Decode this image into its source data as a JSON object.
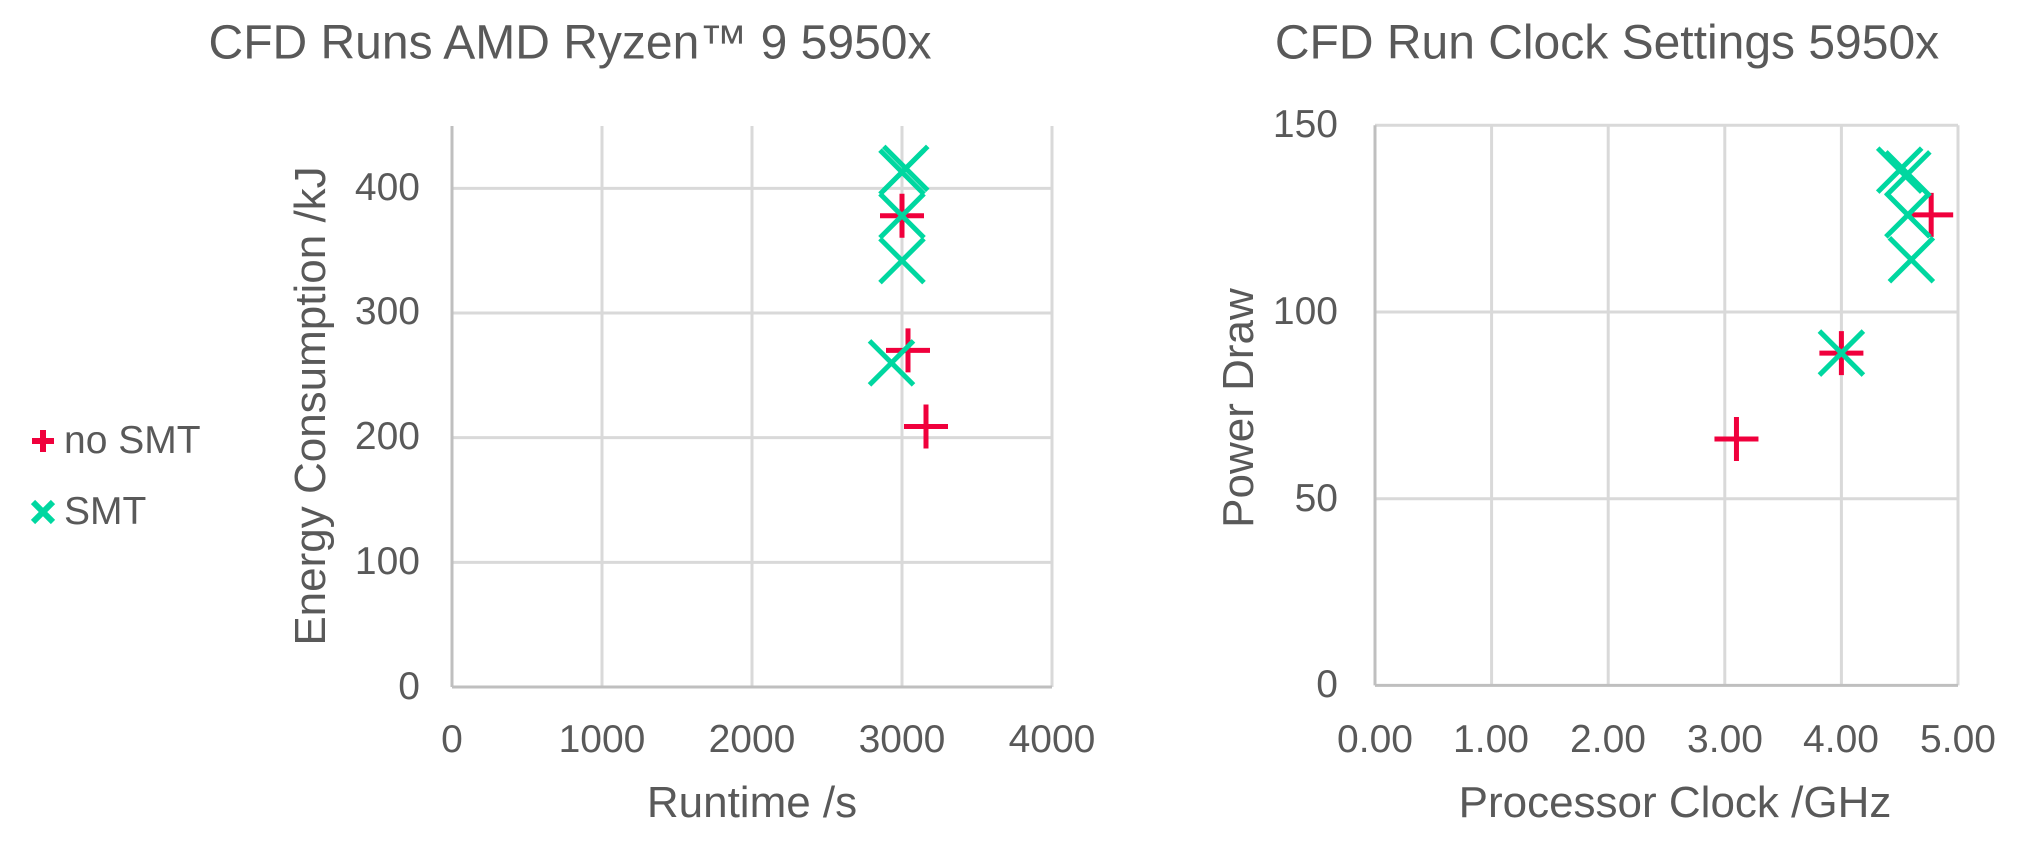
{
  "legend": {
    "items": [
      {
        "label": "no SMT",
        "marker": "plus",
        "color": "#F0003C"
      },
      {
        "label": "SMT",
        "marker": "cross",
        "color": "#00D7A0"
      }
    ]
  },
  "charts": [
    {
      "title": "CFD Runs AMD Ryzen™ 9 5950x",
      "xlabel": "Runtime /s",
      "ylabel": "Energy Consumption /kJ",
      "x_ticks": [
        "0",
        "1000",
        "2000",
        "3000",
        "4000"
      ],
      "y_ticks": [
        "0",
        "100",
        "200",
        "300",
        "400"
      ]
    },
    {
      "title": "CFD Run Clock Settings 5950x",
      "xlabel": "Processor Clock /GHz",
      "ylabel": "Power Draw",
      "x_ticks": [
        "0.00",
        "1.00",
        "2.00",
        "3.00",
        "4.00",
        "5.00"
      ],
      "y_ticks": [
        "0",
        "50",
        "100",
        "150"
      ]
    }
  ],
  "colors": {
    "no_smt": "#F0003C",
    "smt": "#00D7A0",
    "grid": "#D9D9D9",
    "axis": "#BFBFBF",
    "text": "#595959"
  },
  "chart_data": [
    {
      "type": "scatter",
      "title": "CFD Runs AMD Ryzen™ 9 5950x",
      "xlabel": "Runtime /s",
      "ylabel": "Energy Consumption /kJ",
      "xlim": [
        0,
        4000
      ],
      "ylim": [
        0,
        450
      ],
      "x_ticks": [
        0,
        1000,
        2000,
        3000,
        4000
      ],
      "y_ticks": [
        0,
        100,
        200,
        300,
        400
      ],
      "grid": true,
      "legend_position": "left",
      "series": [
        {
          "name": "no SMT",
          "marker": "plus",
          "color": "#F0003C",
          "points": [
            [
              3000,
              378
            ],
            [
              3040,
              270
            ],
            [
              3160,
              209
            ]
          ]
        },
        {
          "name": "SMT",
          "marker": "cross",
          "color": "#00D7A0",
          "points": [
            [
              3000,
              413
            ],
            [
              3025,
              416
            ],
            [
              3000,
              378
            ],
            [
              3000,
              342
            ],
            [
              2930,
              260
            ]
          ]
        }
      ]
    },
    {
      "type": "scatter",
      "title": "CFD Run Clock Settings 5950x",
      "xlabel": "Processor Clock /GHz",
      "ylabel": "Power Draw",
      "xlim": [
        0,
        5
      ],
      "ylim": [
        0,
        150
      ],
      "x_ticks": [
        0,
        1,
        2,
        3,
        4,
        5
      ],
      "y_ticks": [
        0,
        50,
        100,
        150
      ],
      "grid": true,
      "legend_position": "left",
      "series": [
        {
          "name": "no SMT",
          "marker": "plus",
          "color": "#F0003C",
          "points": [
            [
              3.1,
              66
            ],
            [
              4.0,
              89
            ],
            [
              4.77,
              126
            ]
          ]
        },
        {
          "name": "SMT",
          "marker": "cross",
          "color": "#00D7A0",
          "points": [
            [
              4.0,
              89
            ],
            [
              4.5,
              138
            ],
            [
              4.57,
              137
            ],
            [
              4.57,
              126
            ],
            [
              4.6,
              114
            ]
          ]
        }
      ]
    }
  ]
}
